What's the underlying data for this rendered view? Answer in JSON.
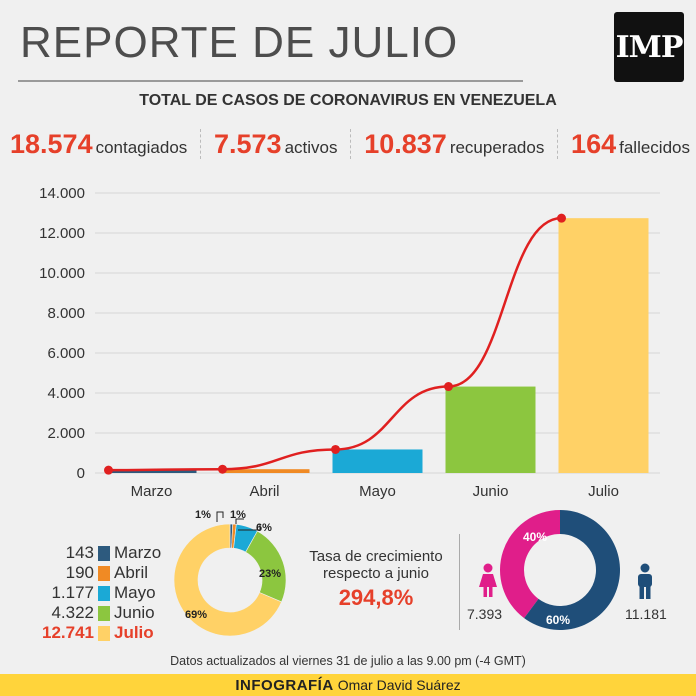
{
  "header": {
    "title": "REPORTE DE JULIO",
    "logo": "IMP",
    "subtitle": "TOTAL DE CASOS DE CORONAVIRUS EN VENEZUELA"
  },
  "stats": [
    {
      "value": "18.574",
      "label": "contagiados"
    },
    {
      "value": "7.573",
      "label": "activos"
    },
    {
      "value": "10.837",
      "label": "recuperados"
    },
    {
      "value": "164",
      "label": "fallecidos"
    }
  ],
  "colors": {
    "accent": "#e6402a",
    "marzo": "#2d5a7e",
    "abril": "#f08a24",
    "mayo": "#1ba9d6",
    "junio": "#8cc63f",
    "julio": "#ffd166",
    "female": "#e01e8a",
    "male": "#1f4e79"
  },
  "chart_data": [
    {
      "type": "bar",
      "categories": [
        "Marzo",
        "Abril",
        "Mayo",
        "Junio",
        "Julio"
      ],
      "series": [
        {
          "values": [
            143,
            190,
            1177,
            4322,
            12741
          ]
        }
      ],
      "line": {
        "values": [
          143,
          190,
          1177,
          4322,
          12741
        ]
      },
      "ylim": [
        0,
        14000
      ],
      "yticks": [
        "0",
        "2.000",
        "4.000",
        "6.000",
        "8.000",
        "10.000",
        "12.000",
        "14.000"
      ],
      "ytick_values": [
        0,
        2000,
        4000,
        6000,
        8000,
        10000,
        12000,
        14000
      ],
      "grid": true
    },
    {
      "type": "pie",
      "categories": [
        "Marzo",
        "Abril",
        "Mayo",
        "Junio",
        "Julio"
      ],
      "values": [
        143,
        190,
        1177,
        4322,
        12741
      ],
      "value_labels": [
        "143",
        "190",
        "1.177",
        "4.322",
        "12.741"
      ],
      "percent_labels": [
        "1%",
        "1%",
        "6%",
        "23%",
        "69%"
      ]
    },
    {
      "type": "pie",
      "categories": [
        "Mujeres",
        "Hombres"
      ],
      "values": [
        7393,
        11181
      ],
      "value_labels": [
        "7.393",
        "11.181"
      ],
      "percent_labels": [
        "40%",
        "60%"
      ]
    }
  ],
  "growth": {
    "label_line1": "Tasa de crecimiento",
    "label_line2": "respecto a junio",
    "value": "294,8%"
  },
  "footnote": "Datos actualizados al viernes 31 de julio a las 9.00 pm (-4 GMT)",
  "footer": {
    "label": "INFOGRAFÍA",
    "author": "Omar David Suárez"
  }
}
